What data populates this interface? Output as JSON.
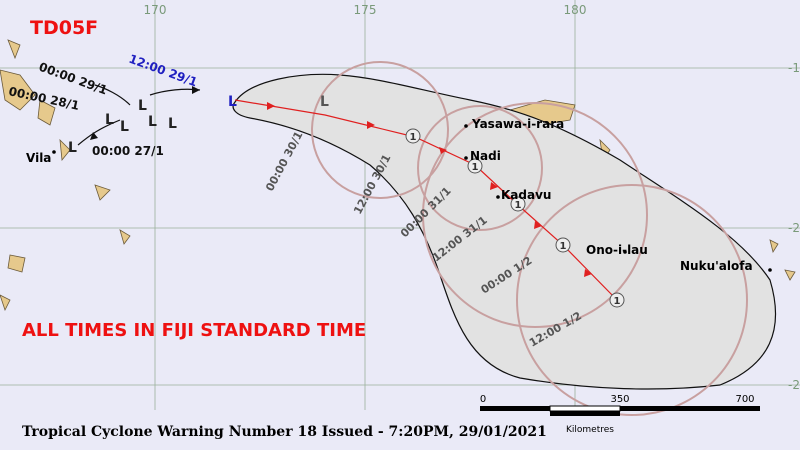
{
  "header": {
    "title": "TD05F",
    "note": "ALL TIMES IN FIJI STANDARD TIME"
  },
  "footer": "Tropical Cyclone Warning Number 18 Issued - 7:20PM, 29/01/2021",
  "longitude_labels": [
    "170",
    "175",
    "180"
  ],
  "latitude_labels": [
    "-1",
    "-2",
    "-2"
  ],
  "places": [
    "Vila",
    "Yasawa-i-rara",
    "Nadi",
    "Kadavu",
    "Ono-i-lau",
    "Nuku'alofa"
  ],
  "past_track_times": [
    "00:00 28/1",
    "00:00 29/1",
    "12:00 29/1",
    "00:00 27/1"
  ],
  "forecast_times": [
    "00:00 30/1",
    "12:00 30/1",
    "00:00 31/1",
    "12:00 31/1",
    "00:00 1/2",
    "12:00 1/2"
  ],
  "symbols": {
    "low": "L",
    "category": "1"
  },
  "scale": {
    "ticks": [
      "0",
      "350",
      "700"
    ],
    "unit": "Kilometres"
  }
}
